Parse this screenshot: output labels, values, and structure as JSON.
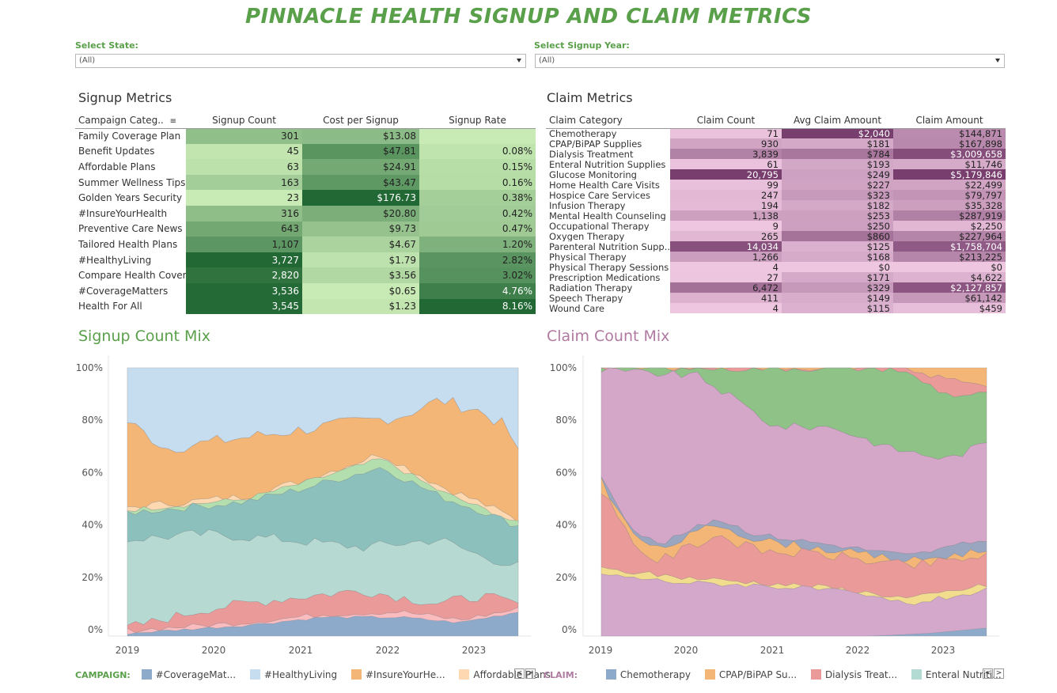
{
  "title": "PINNACLE HEALTH SIGNUP AND CLAIM METRICS",
  "filters": {
    "state_label": "Select State:",
    "state_value": "(All)",
    "year_label": "Select Signup Year:",
    "year_value": "(All)"
  },
  "signup": {
    "section_title": "Signup Metrics",
    "headers": [
      "Campaign Categ..",
      "Signup Count",
      "Cost per Signup",
      "Signup Rate"
    ],
    "rows": [
      {
        "name": "Family Coverage Plan",
        "count": "301",
        "cost": "$13.08",
        "rate": ""
      },
      {
        "name": "Benefit Updates",
        "count": "45",
        "cost": "$47.81",
        "rate": "0.08%"
      },
      {
        "name": "Affordable Plans",
        "count": "63",
        "cost": "$24.91",
        "rate": "0.15%"
      },
      {
        "name": "Summer Wellness Tips",
        "count": "163",
        "cost": "$43.47",
        "rate": "0.16%"
      },
      {
        "name": "Golden Years Security",
        "count": "23",
        "cost": "$176.73",
        "rate": "0.38%"
      },
      {
        "name": "#InsureYourHealth",
        "count": "316",
        "cost": "$20.80",
        "rate": "0.42%"
      },
      {
        "name": "Preventive Care News",
        "count": "643",
        "cost": "$9.73",
        "rate": "0.47%"
      },
      {
        "name": "Tailored Health Plans",
        "count": "1,107",
        "cost": "$4.67",
        "rate": "1.20%"
      },
      {
        "name": "#HealthyLiving",
        "count": "3,727",
        "cost": "$1.79",
        "rate": "2.82%"
      },
      {
        "name": "Compare Health Cover..",
        "count": "2,820",
        "cost": "$3.56",
        "rate": "3.02%"
      },
      {
        "name": "#CoverageMatters",
        "count": "3,536",
        "cost": "$0.65",
        "rate": "4.76%"
      },
      {
        "name": "Health For All",
        "count": "3,545",
        "cost": "$1.23",
        "rate": "8.16%"
      }
    ]
  },
  "claim": {
    "section_title": "Claim Metrics",
    "headers": [
      "Claim Category",
      "Claim Count",
      "Avg Claim Amount",
      "Claim Amount"
    ],
    "rows": [
      {
        "name": "Chemotherapy",
        "count": "71",
        "avg": "$2,040",
        "amount": "$144,871"
      },
      {
        "name": "CPAP/BiPAP Supplies",
        "count": "930",
        "avg": "$181",
        "amount": "$167,898"
      },
      {
        "name": "Dialysis Treatment",
        "count": "3,839",
        "avg": "$784",
        "amount": "$3,009,658"
      },
      {
        "name": "Enteral Nutrition Supplies",
        "count": "61",
        "avg": "$193",
        "amount": "$11,746"
      },
      {
        "name": "Glucose Monitoring",
        "count": "20,795",
        "avg": "$249",
        "amount": "$5,179,846"
      },
      {
        "name": "Home Health Care Visits",
        "count": "99",
        "avg": "$227",
        "amount": "$22,499"
      },
      {
        "name": "Hospice Care Services",
        "count": "247",
        "avg": "$323",
        "amount": "$79,797"
      },
      {
        "name": "Infusion Therapy",
        "count": "194",
        "avg": "$182",
        "amount": "$35,328"
      },
      {
        "name": "Mental Health Counseling",
        "count": "1,138",
        "avg": "$253",
        "amount": "$287,919"
      },
      {
        "name": "Occupational Therapy",
        "count": "9",
        "avg": "$250",
        "amount": "$2,250"
      },
      {
        "name": "Oxygen Therapy",
        "count": "265",
        "avg": "$860",
        "amount": "$227,964"
      },
      {
        "name": "Parenteral Nutrition Supp..",
        "count": "14,034",
        "avg": "$125",
        "amount": "$1,758,704"
      },
      {
        "name": "Physical Therapy",
        "count": "1,266",
        "avg": "$168",
        "amount": "$213,225"
      },
      {
        "name": "Physical Therapy Sessions",
        "count": "4",
        "avg": "$0",
        "amount": "$0"
      },
      {
        "name": "Prescription Medications",
        "count": "27",
        "avg": "$171",
        "amount": "$4,622"
      },
      {
        "name": "Radiation Therapy",
        "count": "6,472",
        "avg": "$329",
        "amount": "$2,127,857"
      },
      {
        "name": "Speech Therapy",
        "count": "411",
        "avg": "$149",
        "amount": "$61,142"
      },
      {
        "name": "Wound Care",
        "count": "4",
        "avg": "$115",
        "amount": "$459"
      }
    ]
  },
  "colors": {
    "accent_green": "#5aa04a",
    "accent_mauve": "#b07aa1"
  },
  "signup_mix": {
    "title": "Signup Count Mix",
    "y_ticks": [
      "100%",
      "80%",
      "60%",
      "40%",
      "20%",
      "0%"
    ],
    "x_ticks": [
      "2019",
      "2020",
      "2021",
      "2022",
      "2023"
    ],
    "legend_title": "CAMPAIGN:",
    "legend": [
      {
        "label": "#CoverageMat...",
        "color": "#8eaacb"
      },
      {
        "label": "#HealthyLiving",
        "color": "#c6dcef"
      },
      {
        "label": "#InsureYourHe...",
        "color": "#f4b676"
      },
      {
        "label": "Affordable Plans",
        "color": "#fdd8b0"
      }
    ]
  },
  "claim_mix": {
    "title": "Claim Count Mix",
    "y_ticks": [
      "100%",
      "80%",
      "60%",
      "40%",
      "20%",
      "0%"
    ],
    "x_ticks": [
      "2019",
      "2020",
      "2021",
      "2022",
      "2023"
    ],
    "legend_title": "CLAIM:",
    "legend": [
      {
        "label": "Chemotherapy",
        "color": "#8eaacb"
      },
      {
        "label": "CPAP/BiPAP Su...",
        "color": "#f4b676"
      },
      {
        "label": "Dialysis Treat...",
        "color": "#ea9a98"
      },
      {
        "label": "Enteral Nutriti...",
        "color": "#b4dad4"
      }
    ]
  }
}
